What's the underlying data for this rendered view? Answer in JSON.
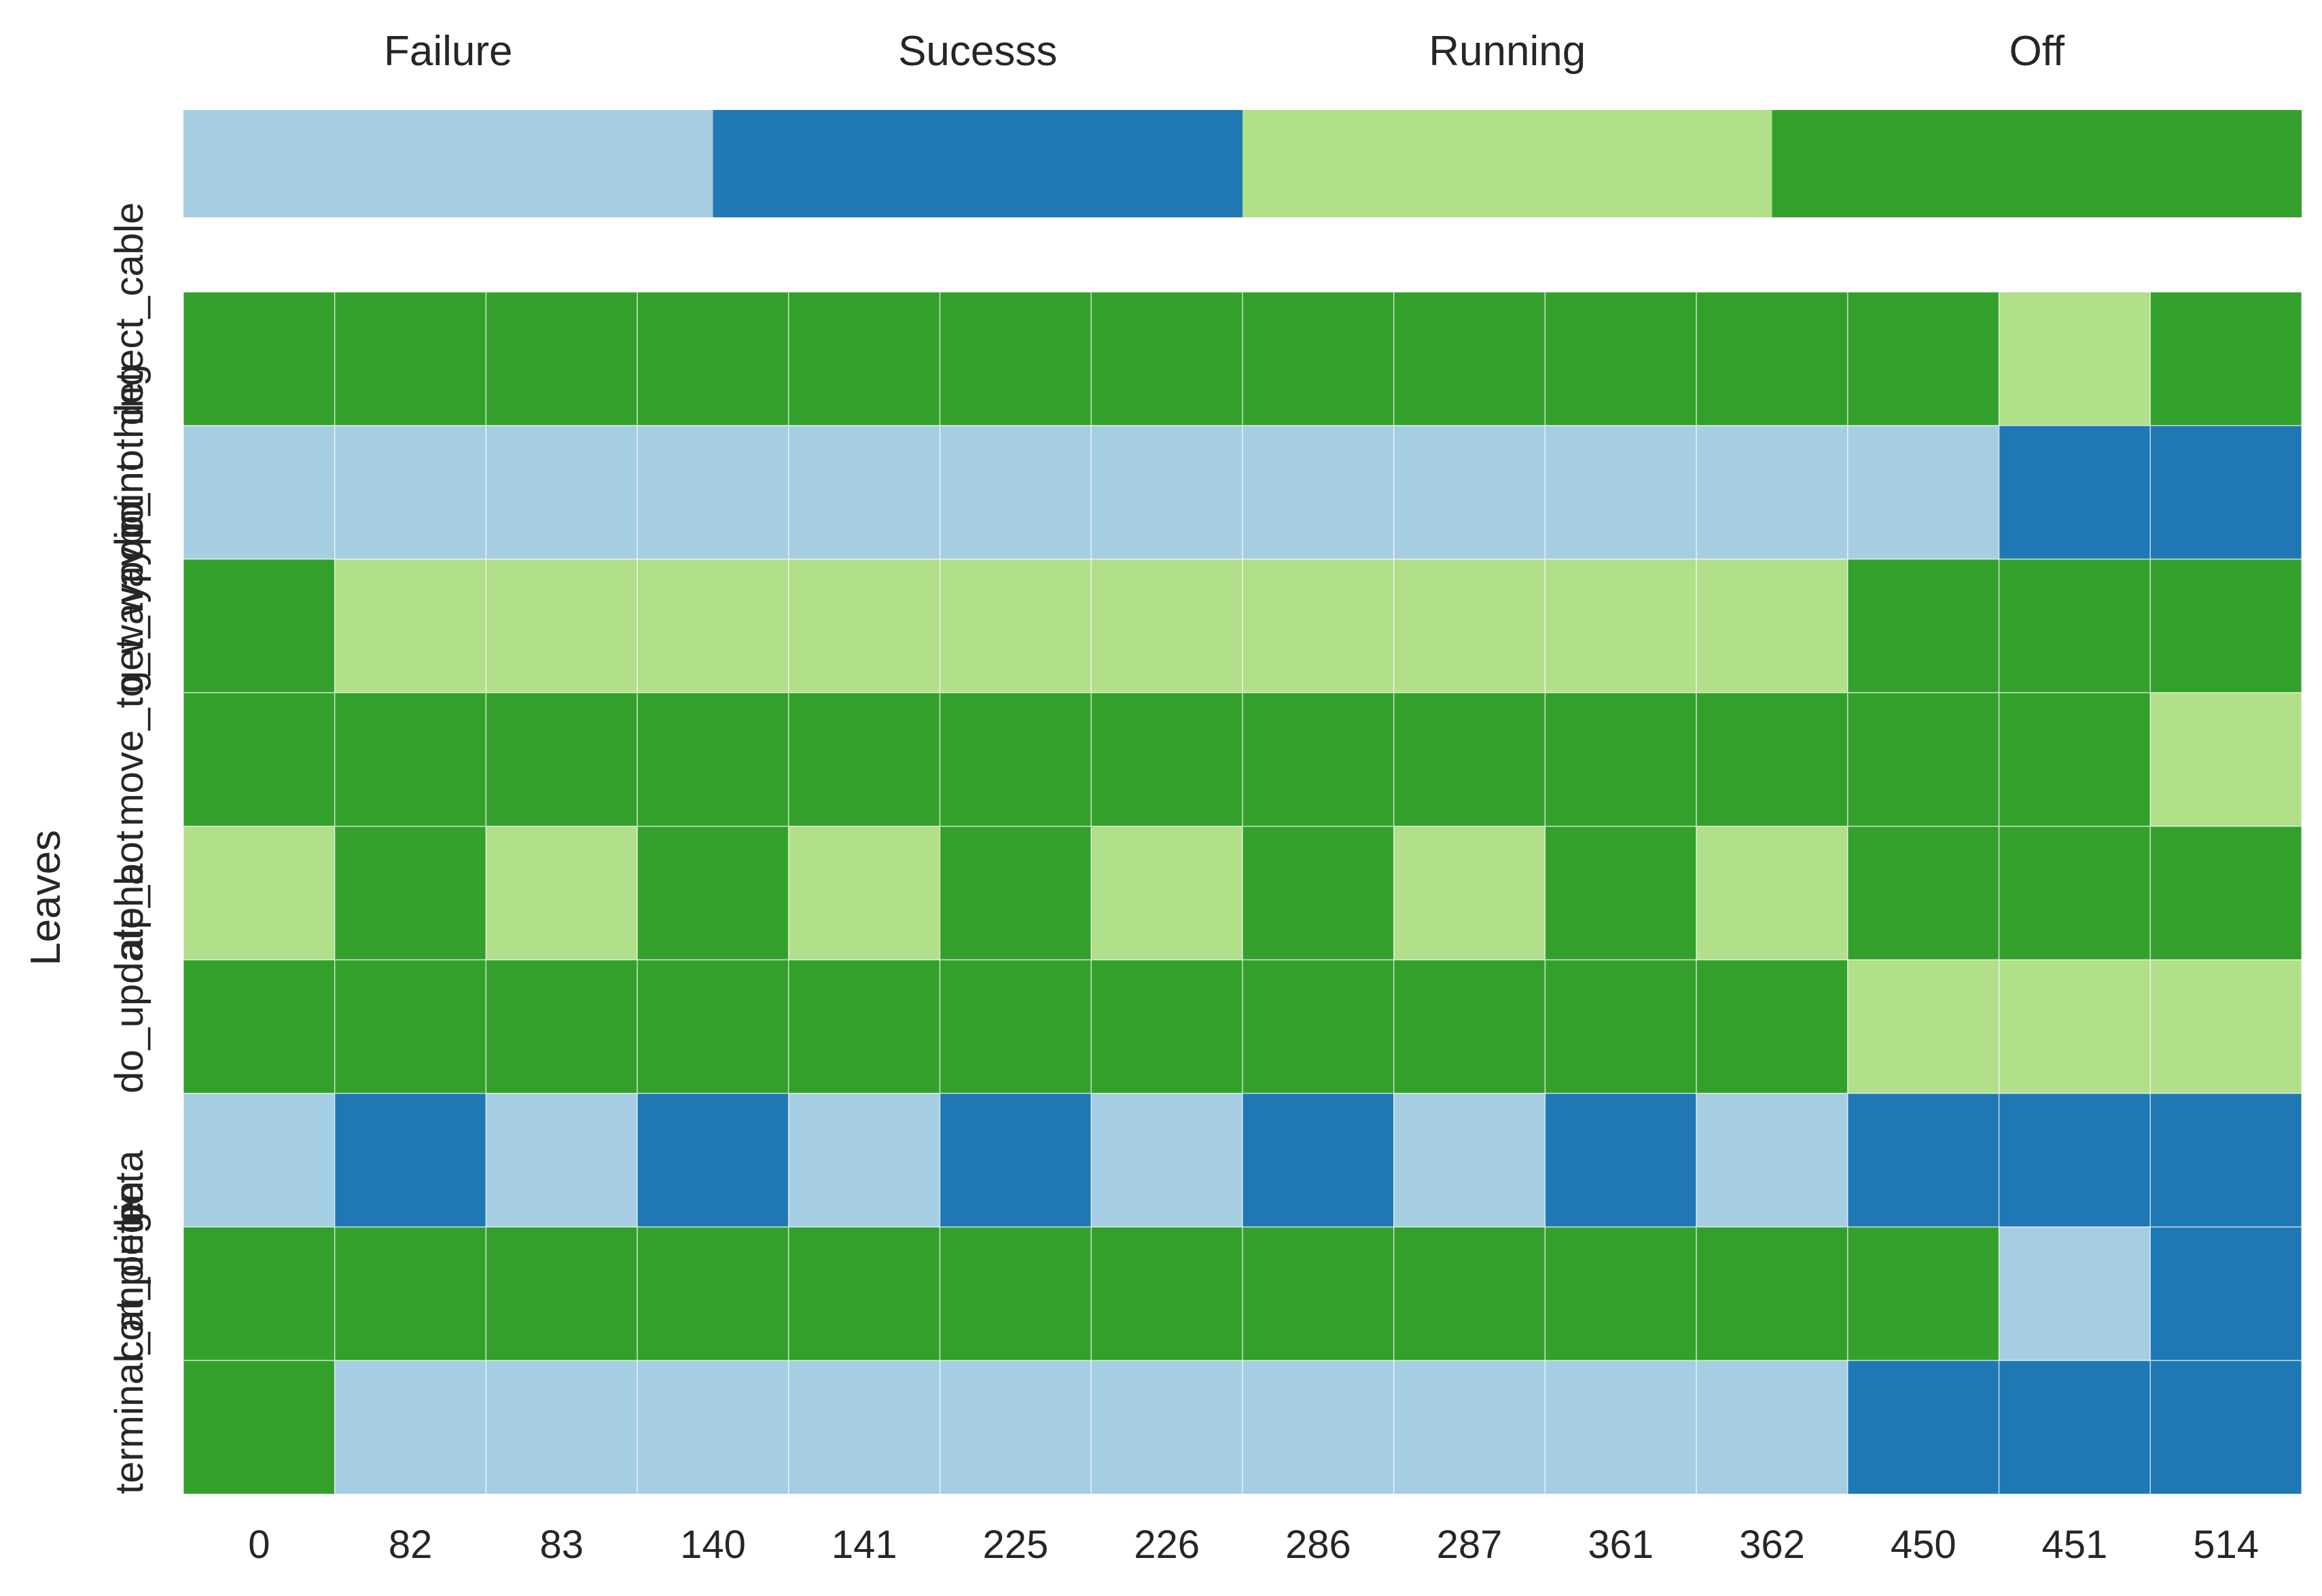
{
  "chart_data": {
    "type": "heatmap",
    "title": "",
    "xlabel": "",
    "ylabel": "Leaves",
    "x": [
      "0",
      "82",
      "83",
      "140",
      "141",
      "225",
      "226",
      "286",
      "287",
      "361",
      "362",
      "450",
      "451",
      "514"
    ],
    "y": [
      "terminal_at_origin",
      "complete",
      "beta",
      "do_update_bot",
      "alpha",
      "move_to_waypoint",
      "get_waypoint",
      "do_nothing",
      "detect_cable"
    ],
    "legend": {
      "placement": "top",
      "categories": [
        "Failure",
        "Sucesss",
        "Running",
        "Off"
      ],
      "colors": [
        "#a6cee3",
        "#1f78b4",
        "#b2df8a",
        "#33a02c"
      ]
    },
    "grid": false,
    "cells": [
      [
        "Off",
        "Off",
        "Off",
        "Off",
        "Off",
        "Off",
        "Off",
        "Off",
        "Off",
        "Off",
        "Off",
        "Off",
        "Running",
        "Off"
      ],
      [
        "Failure",
        "Failure",
        "Failure",
        "Failure",
        "Failure",
        "Failure",
        "Failure",
        "Failure",
        "Failure",
        "Failure",
        "Failure",
        "Failure",
        "Sucesss",
        "Sucesss"
      ],
      [
        "Off",
        "Running",
        "Running",
        "Running",
        "Running",
        "Running",
        "Running",
        "Running",
        "Running",
        "Running",
        "Running",
        "Off",
        "Off",
        "Off"
      ],
      [
        "Off",
        "Off",
        "Off",
        "Off",
        "Off",
        "Off",
        "Off",
        "Off",
        "Off",
        "Off",
        "Off",
        "Off",
        "Off",
        "Running"
      ],
      [
        "Running",
        "Off",
        "Running",
        "Off",
        "Running",
        "Off",
        "Running",
        "Off",
        "Running",
        "Off",
        "Running",
        "Off",
        "Off",
        "Off"
      ],
      [
        "Off",
        "Off",
        "Off",
        "Off",
        "Off",
        "Off",
        "Off",
        "Off",
        "Off",
        "Off",
        "Off",
        "Running",
        "Running",
        "Running"
      ],
      [
        "Failure",
        "Sucesss",
        "Failure",
        "Sucesss",
        "Failure",
        "Sucesss",
        "Failure",
        "Sucesss",
        "Failure",
        "Sucesss",
        "Failure",
        "Sucesss",
        "Sucesss",
        "Sucesss"
      ],
      [
        "Off",
        "Off",
        "Off",
        "Off",
        "Off",
        "Off",
        "Off",
        "Off",
        "Off",
        "Off",
        "Off",
        "Off",
        "Failure",
        "Sucesss"
      ],
      [
        "Off",
        "Failure",
        "Failure",
        "Failure",
        "Failure",
        "Failure",
        "Failure",
        "Failure",
        "Failure",
        "Failure",
        "Failure",
        "Sucesss",
        "Sucesss",
        "Sucesss"
      ]
    ]
  }
}
